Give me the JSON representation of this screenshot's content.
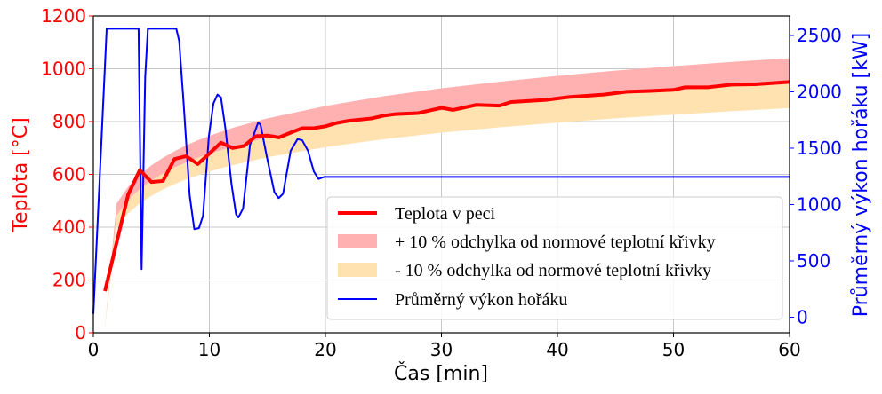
{
  "chart_data": {
    "type": "line",
    "xlabel": "Čas [min]",
    "ylabel_left": "Teplota [°C]",
    "ylabel_right": "Průměrný výkon hořáku [kW]",
    "xlim": [
      0,
      60
    ],
    "ylim_left": [
      0,
      1200
    ],
    "ylim_right": [
      -138,
      2673
    ],
    "x_ticks": [
      0,
      10,
      20,
      30,
      40,
      50,
      60
    ],
    "y_ticks_left": [
      0,
      200,
      400,
      600,
      800,
      1000,
      1200
    ],
    "y_ticks_right": [
      0,
      500,
      1000,
      1500,
      2000,
      2500
    ],
    "grid": true,
    "legend_position": "lower-right",
    "colors": {
      "temperature": "#ff0000",
      "upper_band": "#ffb0b0",
      "lower_band": "#ffe2b0",
      "power": "#0000ff",
      "left_axis": "#ff0000",
      "right_axis": "#0000ff"
    },
    "series": [
      {
        "name": "Teplota v peci",
        "axis": "left",
        "x": [
          1,
          3,
          4,
          5,
          6,
          7,
          8,
          9,
          10,
          11,
          12,
          13,
          14,
          15,
          16,
          17,
          18,
          19,
          20,
          21,
          22,
          24,
          25,
          26,
          28,
          30,
          31,
          33,
          35,
          36,
          39,
          41,
          44,
          46,
          48,
          50,
          51,
          53,
          55,
          57,
          60
        ],
        "y": [
          158,
          523,
          616,
          571,
          575,
          658,
          669,
          639,
          679,
          720,
          700,
          708,
          745,
          747,
          740,
          758,
          775,
          775,
          782,
          795,
          803,
          812,
          822,
          828,
          832,
          852,
          844,
          863,
          860,
          874,
          882,
          893,
          902,
          913,
          916,
          920,
          930,
          930,
          940,
          941,
          950
        ]
      },
      {
        "name": "+ 10 % odchylka od normové teplotní křivky",
        "axis": "left",
        "type": "area",
        "x": [
          1,
          2,
          3,
          4,
          5,
          6,
          7,
          8,
          9,
          10,
          12,
          15,
          20,
          25,
          30,
          35,
          40,
          45,
          50,
          55,
          60
        ],
        "y_low": [
          20,
          445,
          502,
          544,
          576,
          603,
          626,
          645,
          663,
          678,
          705,
          739,
          781,
          815,
          842,
          865,
          885,
          902,
          918,
          932,
          945
        ],
        "y_high": [
          22,
          489,
          553,
          598,
          634,
          663,
          688,
          710,
          729,
          746,
          776,
          812,
          859,
          896,
          926,
          951,
          973,
          993,
          1010,
          1026,
          1040
        ]
      },
      {
        "name": "- 10 % odchylka od normové teplotní křivky",
        "axis": "left",
        "type": "area",
        "x": [
          1,
          2,
          3,
          4,
          5,
          6,
          7,
          8,
          9,
          10,
          12,
          15,
          20,
          25,
          30,
          35,
          40,
          45,
          50,
          55,
          60
        ],
        "y_low": [
          18,
          400,
          452,
          490,
          519,
          543,
          563,
          581,
          596,
          611,
          635,
          665,
          703,
          733,
          758,
          778,
          796,
          812,
          826,
          839,
          851
        ],
        "y_high": [
          20,
          445,
          502,
          544,
          576,
          603,
          626,
          645,
          663,
          678,
          705,
          739,
          781,
          815,
          842,
          865,
          885,
          902,
          918,
          932,
          945
        ]
      },
      {
        "name": "Průměrný výkon hořáku",
        "axis": "right",
        "x": [
          0,
          1.15,
          3.9,
          4.16,
          4.47,
          4.7,
          7.15,
          7.4,
          7.8,
          8.3,
          8.7,
          9.1,
          9.45,
          9.96,
          10.35,
          10.7,
          11.0,
          11.4,
          11.9,
          12.3,
          12.5,
          12.9,
          13.5,
          14.2,
          14.4,
          14.95,
          15.6,
          15.97,
          16.35,
          17.0,
          17.6,
          18.0,
          18.5,
          19.0,
          19.4,
          19.9,
          60
        ],
        "y": [
          30,
          2560,
          2560,
          427,
          2132,
          2560,
          2560,
          2450,
          1870,
          1083,
          781,
          790,
          899,
          1608,
          1896,
          1975,
          1950,
          1660,
          1187,
          912,
          886,
          965,
          1529,
          1726,
          1710,
          1424,
          1109,
          1057,
          1096,
          1476,
          1581,
          1570,
          1476,
          1293,
          1227,
          1245,
          1245
        ]
      }
    ]
  }
}
